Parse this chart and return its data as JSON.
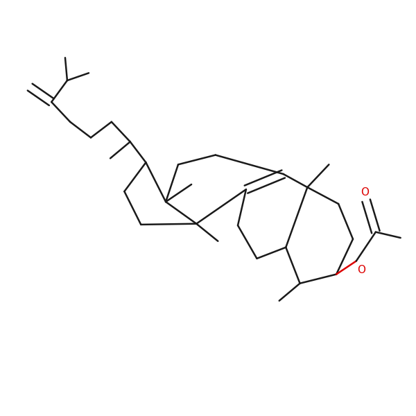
{
  "background": "#ffffff",
  "bond_color": "#1a1a1a",
  "oxygen_color": "#dd0000",
  "lw": 1.8,
  "figsize": [
    6.0,
    6.0
  ],
  "dpi": 100,
  "xlim": [
    0,
    10
  ],
  "ylim": [
    0,
    10
  ],
  "font_size": 11
}
